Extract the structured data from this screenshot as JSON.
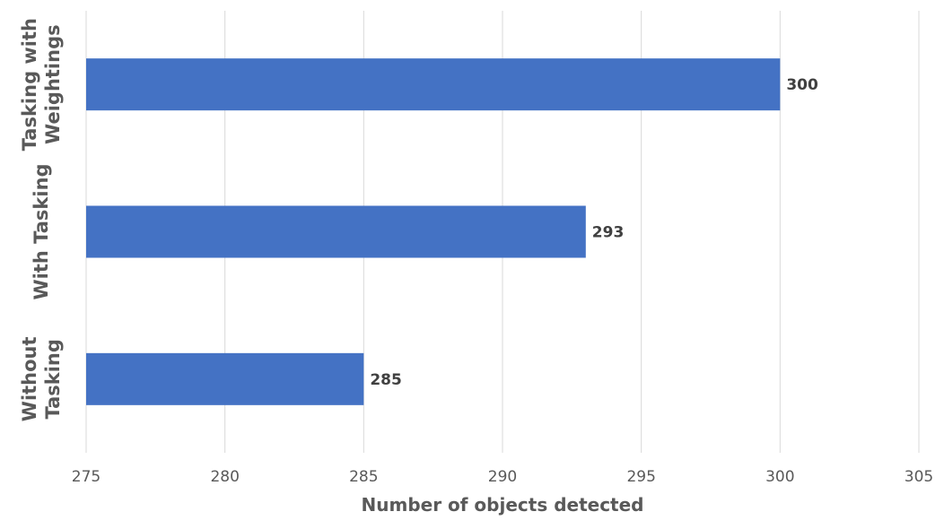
{
  "chart_data": {
    "type": "bar",
    "orientation": "horizontal",
    "categories": [
      "Tasking with Weightings",
      "With Tasking",
      "Without Tasking"
    ],
    "category_lines": [
      [
        "Tasking with",
        "Weightings"
      ],
      [
        "With Tasking"
      ],
      [
        "Without",
        "Tasking"
      ]
    ],
    "values": [
      300,
      293,
      285
    ],
    "data_labels": [
      "300",
      "293",
      "285"
    ],
    "title": "",
    "xlabel": "Number of objects detected",
    "ylabel": "",
    "xlim": [
      275,
      305
    ],
    "x_ticks": [
      275,
      280,
      285,
      290,
      295,
      300,
      305
    ],
    "x_tick_labels": [
      "275",
      "280",
      "285",
      "290",
      "295",
      "300",
      "305"
    ],
    "grid": "vertical",
    "legend": "none",
    "bar_color": "#4472C4",
    "grid_color": "#D9D9D9"
  }
}
